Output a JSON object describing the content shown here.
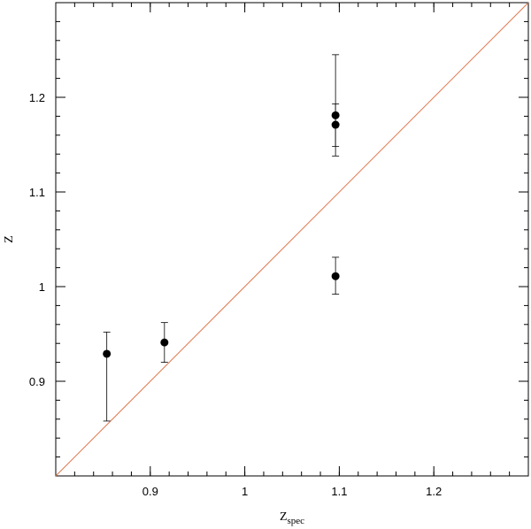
{
  "chart_data": {
    "type": "scatter",
    "title": "",
    "xlabel": "Z",
    "xlabel_sub": "spec",
    "ylabel": "Z",
    "xlim": [
      0.8,
      1.3
    ],
    "ylim": [
      0.8,
      1.3
    ],
    "xticks": [
      {
        "value": 0.9,
        "label": "0.9"
      },
      {
        "value": 1.0,
        "label": "1"
      },
      {
        "value": 1.1,
        "label": "1.1"
      },
      {
        "value": 1.2,
        "label": "1.2"
      }
    ],
    "yticks": [
      {
        "value": 0.9,
        "label": "0.9"
      },
      {
        "value": 1.0,
        "label": "1"
      },
      {
        "value": 1.1,
        "label": "1.1"
      },
      {
        "value": 1.2,
        "label": "1.2"
      }
    ],
    "minor_tick_step": 0.02,
    "grid": false,
    "points": [
      {
        "x": 0.854,
        "y": 0.929,
        "yerr_low": 0.858,
        "yerr_high": 0.952
      },
      {
        "x": 0.915,
        "y": 0.941,
        "yerr_low": 0.92,
        "yerr_high": 0.962
      },
      {
        "x": 1.096,
        "y": 1.181,
        "yerr_low": 1.148,
        "yerr_high": 1.245
      },
      {
        "x": 1.096,
        "y": 1.171,
        "yerr_low": 1.138,
        "yerr_high": 1.193
      },
      {
        "x": 1.096,
        "y": 1.011,
        "yerr_low": 0.992,
        "yerr_high": 1.031
      }
    ],
    "reference_line": {
      "type": "y=x",
      "color": "#e07850"
    },
    "marker_color": "#000000"
  }
}
